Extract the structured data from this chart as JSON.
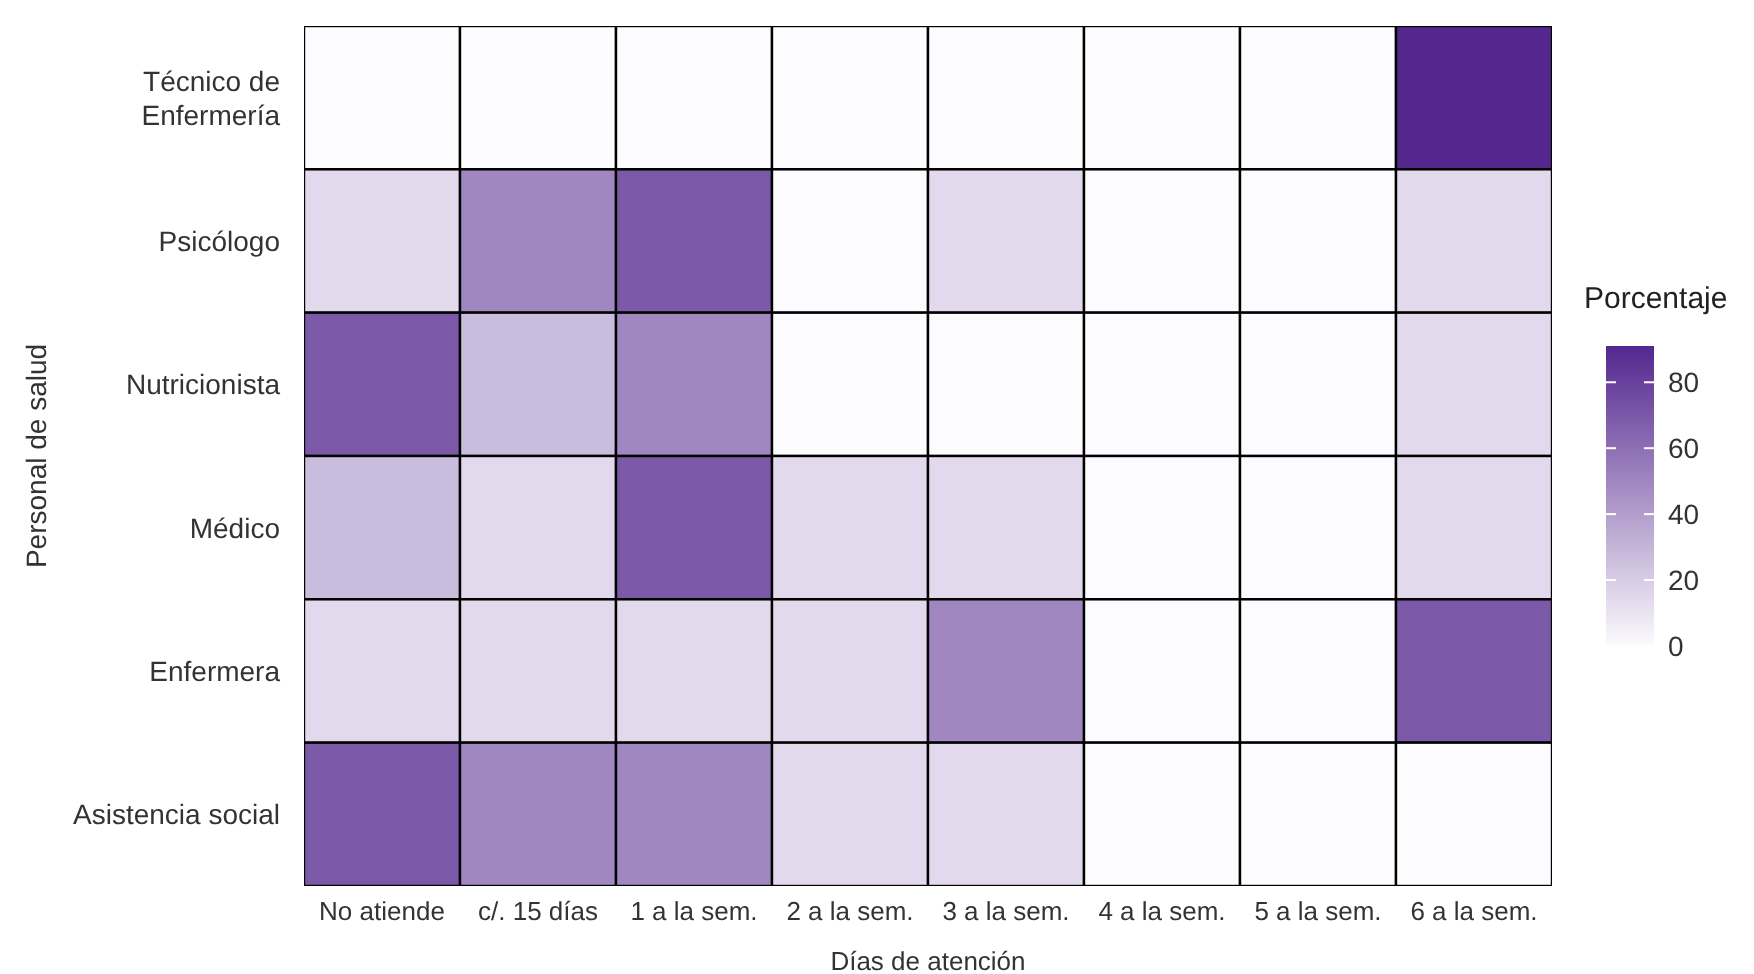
{
  "chart_data": {
    "type": "heatmap",
    "xlabel": "Días de atención",
    "ylabel": "Personal de salud",
    "clabel": "Porcentaje",
    "categories": [
      "No atiende",
      "c/. 15 días",
      "1 a la sem.",
      "2 a la sem.",
      "3 a la sem.",
      "4 a la sem.",
      "5 a la sem.",
      "6 a la sem."
    ],
    "y_categories": [
      "Técnico de Enfermería",
      "Psicólogo",
      "Nutricionista",
      "Médico",
      "Enfermera",
      "Asistencia social"
    ],
    "cells": [
      [
        0,
        0,
        0,
        0,
        0,
        0,
        0,
        91
      ],
      [
        14,
        50,
        70,
        0,
        14,
        0,
        0,
        14
      ],
      [
        70,
        27,
        50,
        0,
        0,
        0,
        0,
        14
      ],
      [
        27,
        14,
        70,
        14,
        14,
        0,
        0,
        14
      ],
      [
        14,
        14,
        14,
        14,
        50,
        0,
        0,
        70
      ],
      [
        70,
        50,
        50,
        14,
        14,
        0,
        0,
        0
      ]
    ],
    "clim": [
      0,
      91
    ],
    "cticks": [
      0,
      20,
      40,
      60,
      80
    ]
  }
}
